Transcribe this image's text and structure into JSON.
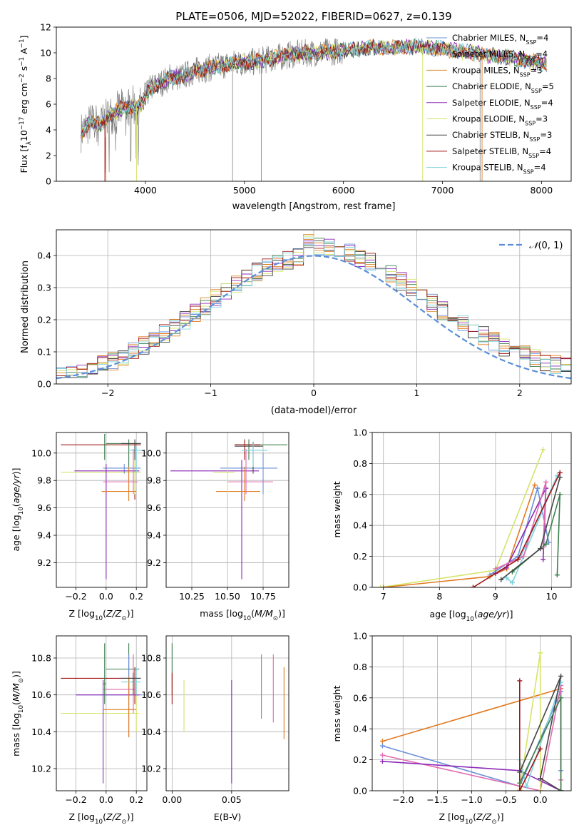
{
  "title": "PLATE=0506, MJD=52022, FIBERID=0627, z=0.139",
  "colors": {
    "chabrier_miles": "#6a8fd8",
    "salpeter_miles": "#e07b22",
    "kroupa_miles": "#d9892a",
    "chabrier_elodie": "#3c7d4e",
    "salpeter_elodie": "#8e2ab8",
    "kroupa_elodie": "#d6e36a",
    "chabrier_stelib": "#444444",
    "salpeter_stelib": "#a01616",
    "kroupa_stelib": "#7fd3df",
    "pink": "#e06ab0",
    "data": "#808080",
    "gauss": "#5b8fd8"
  },
  "chart_data": [
    {
      "id": "spectrum",
      "type": "line",
      "xlabel": "wavelength [Angstrom, rest frame]",
      "ylabel": "Flux [f_λ 10^-17 erg cm^-2 s^-1 A^-1]",
      "xlim": [
        3100,
        8300
      ],
      "ylim": [
        0,
        12
      ],
      "xticks": [
        4000,
        5000,
        6000,
        7000,
        8000
      ],
      "yticks": [
        0,
        2,
        4,
        6,
        8,
        10,
        12
      ],
      "legend": [
        "Chabrier MILES, N_SSP=4",
        "Salpeter MILES, N_SSP=4",
        "Kroupa MILES, N_SSP=3",
        "Chabrier ELODIE, N_SSP=5",
        "Salpeter ELODIE, N_SSP=4",
        "Kroupa ELODIE, N_SSP=3",
        "Chabrier STELIB, N_SSP=3",
        "Salpeter STELIB, N_SSP=4",
        "Kroupa STELIB, N_SSP=4"
      ],
      "legend_placement": "right",
      "continuum": [
        [
          3350,
          3.8
        ],
        [
          3450,
          4.6
        ],
        [
          3550,
          4.4
        ],
        [
          3650,
          5.2
        ],
        [
          3750,
          5.6
        ],
        [
          3850,
          5.9
        ],
        [
          3950,
          5.8
        ],
        [
          4050,
          7.3
        ],
        [
          4150,
          7.6
        ],
        [
          4250,
          8.1
        ],
        [
          4350,
          8.1
        ],
        [
          4500,
          8.6
        ],
        [
          4700,
          8.9
        ],
        [
          4900,
          9.2
        ],
        [
          5100,
          9.3
        ],
        [
          5300,
          9.6
        ],
        [
          5500,
          9.9
        ],
        [
          5700,
          10.0
        ],
        [
          5900,
          10.1
        ],
        [
          6100,
          10.3
        ],
        [
          6300,
          10.4
        ],
        [
          6500,
          10.4
        ],
        [
          6700,
          10.5
        ],
        [
          6900,
          10.4
        ],
        [
          7100,
          10.2
        ],
        [
          7300,
          10.0
        ],
        [
          7500,
          9.8
        ],
        [
          7700,
          9.6
        ],
        [
          7900,
          9.3
        ],
        [
          8050,
          9.1
        ]
      ]
    },
    {
      "id": "residuals",
      "type": "line",
      "xlabel": "(data-model)/error",
      "ylabel": "Normed distribution",
      "xlim": [
        -2.5,
        2.5
      ],
      "ylim": [
        0,
        0.48
      ],
      "xticks": [
        -2,
        -1,
        0,
        1,
        2
      ],
      "xtick_labels": [
        "−2",
        "−1",
        "0",
        "1",
        "2"
      ],
      "yticks": [
        0.0,
        0.1,
        0.2,
        0.3,
        0.4
      ],
      "legend": [
        "N(0,1)"
      ],
      "legend_placement": "top-right"
    },
    {
      "id": "age_vs_Z",
      "type": "scatter",
      "xlabel": "Z [log10(Z/Z⊙)]",
      "ylabel": "age [log10(age/yr)]",
      "xlim": [
        -0.33,
        0.27
      ],
      "ylim": [
        9.02,
        10.15
      ],
      "xticks": [
        -0.2,
        0.0,
        0.2
      ],
      "xtick_labels": [
        "−0.2",
        "0.0",
        "0.2"
      ],
      "yticks": [
        9.2,
        9.4,
        9.6,
        9.8,
        10.0
      ]
    },
    {
      "id": "age_vs_mass",
      "type": "scatter",
      "xlabel": "mass [log10(M/M⊙)]",
      "xlim": [
        10.07,
        10.93
      ],
      "ylim": [
        9.02,
        10.15
      ],
      "xticks": [
        10.25,
        10.5,
        10.75
      ],
      "xtick_labels": [
        "10.25",
        "10.50",
        "10.75"
      ],
      "yticks": [
        9.2,
        9.4,
        9.6,
        9.8,
        10.0
      ]
    },
    {
      "id": "weight_vs_age",
      "type": "line",
      "xlabel": "age [log10(age/yr)]",
      "ylabel": "mass weight",
      "xlim": [
        6.8,
        10.35
      ],
      "ylim": [
        0,
        1
      ],
      "xticks": [
        7,
        8,
        9,
        10
      ],
      "yticks": [
        0.0,
        0.2,
        0.4,
        0.6,
        0.8,
        1.0
      ]
    },
    {
      "id": "mass_vs_Z",
      "type": "scatter",
      "xlabel": "Z [log10(Z/Z⊙)]",
      "ylabel": "mass [log10(M/M⊙)]",
      "xlim": [
        -0.33,
        0.27
      ],
      "ylim": [
        10.08,
        10.92
      ],
      "xticks": [
        -0.2,
        0.0,
        0.2
      ],
      "xtick_labels": [
        "−0.2",
        "0.0",
        "0.2"
      ],
      "yticks": [
        10.2,
        10.4,
        10.6,
        10.8
      ]
    },
    {
      "id": "mass_vs_ebv",
      "type": "scatter",
      "xlabel": "E(B-V)",
      "xlim": [
        -0.005,
        0.098
      ],
      "ylim": [
        10.08,
        10.92
      ],
      "xticks": [
        0.0,
        0.05
      ],
      "xtick_labels": [
        "0.00",
        "0.05"
      ],
      "yticks": [
        10.2,
        10.4,
        10.6,
        10.8
      ]
    },
    {
      "id": "weight_vs_Z",
      "type": "line",
      "xlabel": "Z [log10(Z/Z⊙)]",
      "ylabel": "mass weight",
      "xlim": [
        -2.45,
        0.45
      ],
      "ylim": [
        0,
        1
      ],
      "xticks": [
        -2.0,
        -1.5,
        -1.0,
        -0.5,
        0.0
      ],
      "xtick_labels": [
        "−2.0",
        "−1.5",
        "−1.0",
        "−0.5",
        "0.0"
      ],
      "yticks": [
        0.0,
        0.2,
        0.4,
        0.6,
        0.8,
        1.0
      ]
    }
  ]
}
